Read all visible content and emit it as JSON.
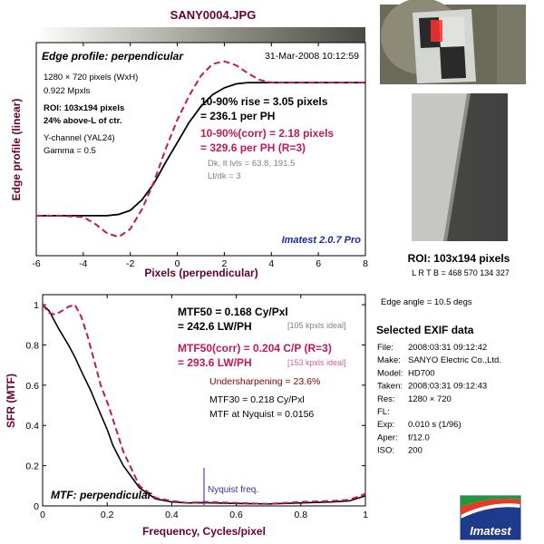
{
  "header": {
    "filename": "SANY0004.JPG"
  },
  "top_panel": {
    "title": "Edge profile: perpendicular",
    "date": "31-Mar-2008 10:12:59",
    "info_lines": [
      "1280 × 720 pixels (WxH)",
      "0.922 Mpxls"
    ],
    "roi_lines": [
      "ROI: 103x194 pixels",
      "24% above-L of ctr."
    ],
    "channel_lines": [
      "Y-channel  (YAL24)",
      "Gamma = 0.5"
    ],
    "rise_lines": [
      "10-90% rise = 3.05 pixels",
      "= 236.1 per PH"
    ],
    "corr_lines": [
      "10-90%(corr) = 2.18 pixels",
      "= 329.6 per PH  (R=3)"
    ],
    "levels_lines": [
      "Dk, lt lvls = 63.8, 191.5",
      "Lt/dk = 3"
    ],
    "version": "Imatest 2.0.7 Pro"
  },
  "bottom_panel": {
    "mtf50_lines": [
      "MTF50 = 0.168 Cy/Pxl",
      "= 242.6 LW/PH"
    ],
    "mtf50_ideal": "[105 kpxls ideal]",
    "mtf50corr_lines": [
      "MTF50(corr) = 0.204  C/P  (R=3)",
      "= 293.6 LW/PH"
    ],
    "mtf50corr_ideal": "[153 kpxls ideal]",
    "undersharpening": "Undersharpening = 23.6%",
    "mtf30": "MTF30 = 0.218 Cy/Pxl",
    "mtf_nyquist": "MTF at Nyquist = 0.0156",
    "nyquist_label": "Nyquist freq.",
    "panel_label": "MTF: perpendicular"
  },
  "right_panel": {
    "roi_caption": "ROI: 103x194 pixels",
    "roi_coords": "L R T B = 468 570  134 327",
    "edge_angle": "Edge angle = 10.5 degs",
    "exif_title": "Selected EXIF data",
    "exif": [
      {
        "k": "File:",
        "v": "2008:03:31 09:12:42"
      },
      {
        "k": "Make:",
        "v": "SANYO Electric Co.,Ltd."
      },
      {
        "k": "Model:",
        "v": "HD700"
      },
      {
        "k": "Taken:",
        "v": "2008:03:31 09:12:43"
      },
      {
        "k": "Res:",
        "v": "1280 × 720"
      },
      {
        "k": "FL:",
        "v": ""
      },
      {
        "k": "Exp:",
        "v": "0.010 s  (1/96)"
      },
      {
        "k": "Aper:",
        "v": "f/12.0"
      },
      {
        "k": "ISO:",
        "v": "200"
      }
    ],
    "logo_text": "Imatest"
  },
  "colors": {
    "measured": "#000000",
    "corrected": "#c0185a",
    "axis_label": "#660033",
    "nyquist": "#6666ee",
    "version": "#1a2aa0"
  },
  "chart_data": [
    {
      "type": "line",
      "title": "Edge profile: perpendicular",
      "xlabel": "Pixels (perpendicular)",
      "ylabel": "Edge profile (linear)",
      "xlim": [
        -6,
        8
      ],
      "ylim": [
        -0.3,
        1.3
      ],
      "xticks": [
        -6,
        -4,
        -2,
        0,
        2,
        4,
        6,
        8
      ],
      "xtick_labels": [
        "-6",
        "-4",
        "-2",
        "0",
        "2",
        "4",
        "6",
        "8"
      ],
      "series": [
        {
          "name": "measured",
          "style": "solid",
          "x": [
            -6,
            -5,
            -4,
            -3,
            -2.5,
            -2,
            -1.5,
            -1,
            -0.5,
            0,
            0.5,
            1,
            1.5,
            2,
            2.5,
            3,
            4,
            5,
            6,
            8
          ],
          "y": [
            0,
            0,
            0,
            0,
            0.01,
            0.04,
            0.12,
            0.24,
            0.4,
            0.55,
            0.7,
            0.82,
            0.91,
            0.96,
            0.99,
            1.0,
            1.0,
            1.0,
            1.0,
            1.0
          ]
        },
        {
          "name": "corrected",
          "style": "dashed",
          "x": [
            -6,
            -5,
            -4,
            -3.5,
            -3,
            -2.5,
            -2,
            -1.5,
            -1,
            -0.5,
            0,
            0.5,
            1,
            1.5,
            2,
            2.5,
            3,
            3.5,
            4,
            5,
            6,
            8
          ],
          "y": [
            0,
            0,
            -0.01,
            -0.06,
            -0.13,
            -0.16,
            -0.1,
            0.05,
            0.25,
            0.5,
            0.72,
            0.9,
            1.05,
            1.14,
            1.16,
            1.13,
            1.07,
            1.02,
            1.0,
            1.0,
            1.0,
            1.0
          ]
        }
      ]
    },
    {
      "type": "line",
      "title": "MTF: perpendicular",
      "xlabel": "Frequency, Cycles/pixel",
      "ylabel": "SFR (MTF)",
      "xlim": [
        0,
        1
      ],
      "ylim": [
        0,
        1.05
      ],
      "xticks": [
        0,
        0.2,
        0.4,
        0.6,
        0.8,
        1
      ],
      "xtick_labels": [
        "0",
        "0.2",
        "0.4",
        "0.6",
        "0.8",
        "1"
      ],
      "yticks": [
        0,
        0.2,
        0.4,
        0.6,
        0.8,
        1
      ],
      "ytick_labels": [
        "0",
        "0.2",
        "0.4",
        "0.6",
        "0.8",
        "1"
      ],
      "nyquist": 0.5,
      "series": [
        {
          "name": "measured",
          "style": "solid",
          "x": [
            0,
            0.02,
            0.05,
            0.08,
            0.1,
            0.12,
            0.15,
            0.168,
            0.2,
            0.218,
            0.25,
            0.3,
            0.35,
            0.4,
            0.45,
            0.5,
            0.6,
            0.7,
            0.8,
            0.9,
            0.95,
            1.0
          ],
          "y": [
            1.0,
            0.97,
            0.88,
            0.8,
            0.74,
            0.67,
            0.57,
            0.5,
            0.38,
            0.3,
            0.2,
            0.09,
            0.035,
            0.02,
            0.015,
            0.016,
            0.012,
            0.01,
            0.015,
            0.02,
            0.025,
            0.05
          ]
        },
        {
          "name": "corrected",
          "style": "dashed",
          "x": [
            0,
            0.02,
            0.04,
            0.06,
            0.08,
            0.1,
            0.12,
            0.14,
            0.16,
            0.18,
            0.204,
            0.22,
            0.25,
            0.3,
            0.35,
            0.4,
            0.45,
            0.5,
            0.6,
            0.7,
            0.8,
            0.9,
            0.95,
            1.0
          ],
          "y": [
            1.0,
            0.96,
            0.95,
            0.97,
            0.99,
            1.0,
            0.94,
            0.84,
            0.72,
            0.6,
            0.5,
            0.42,
            0.27,
            0.1,
            0.04,
            0.025,
            0.015,
            0.02,
            0.015,
            0.01,
            0.02,
            0.025,
            0.03,
            0.06
          ]
        }
      ]
    }
  ]
}
